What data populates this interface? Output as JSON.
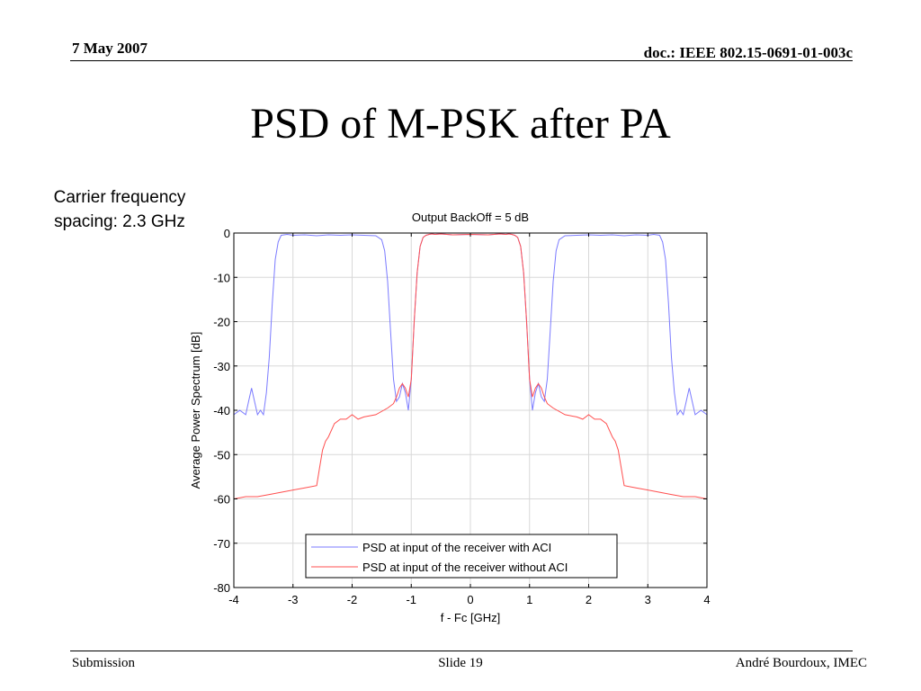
{
  "header": {
    "date": "7 May 2007",
    "doc": "doc.: IEEE 802.15-0691-01-003c"
  },
  "slide": {
    "title": "PSD of M-PSK after PA",
    "note": "Carrier frequency spacing: 2.3 GHz"
  },
  "footer": {
    "left": "Submission",
    "center": "Slide 19",
    "right": "André Bourdoux, IMEC"
  },
  "colors": {
    "with_aci": "#7b7bff",
    "without_aci": "#ff5050",
    "grid": "#d8d8d8"
  },
  "chart_data": {
    "type": "line",
    "title": "Output BackOff = 5 dB",
    "xlabel": "f - Fc [GHz]",
    "ylabel": "Average Power Spectrum [dB]",
    "xlim": [
      -4,
      4
    ],
    "ylim": [
      -80,
      0
    ],
    "xticks": [
      -4,
      -3,
      -2,
      -1,
      0,
      1,
      2,
      3,
      4
    ],
    "yticks": [
      0,
      -10,
      -20,
      -30,
      -40,
      -50,
      -60,
      -70,
      -80
    ],
    "grid": true,
    "legend_position": "bottom-center",
    "series": [
      {
        "name": "PSD at input of the receiver with ACI",
        "x": [
          -4,
          -3.9,
          -3.8,
          -3.75,
          -3.7,
          -3.65,
          -3.6,
          -3.55,
          -3.5,
          -3.45,
          -3.4,
          -3.35,
          -3.3,
          -3.25,
          -3.2,
          -3.1,
          -3.0,
          -2.8,
          -2.6,
          -2.4,
          -2.2,
          -2.0,
          -1.8,
          -1.6,
          -1.5,
          -1.45,
          -1.4,
          -1.35,
          -1.3,
          -1.25,
          -1.2,
          -1.15,
          -1.1,
          -1.05,
          -1.0,
          -0.95,
          -0.9,
          -0.85,
          -0.8,
          -0.75,
          -0.7,
          -0.65,
          -0.6,
          -0.5,
          -0.3,
          0,
          0.3,
          0.5,
          0.6,
          0.65,
          0.7,
          0.75,
          0.8,
          0.85,
          0.9,
          0.95,
          1.0,
          1.05,
          1.1,
          1.15,
          1.2,
          1.25,
          1.3,
          1.35,
          1.4,
          1.45,
          1.5,
          1.6,
          1.8,
          2.0,
          2.2,
          2.4,
          2.6,
          2.8,
          3.0,
          3.1,
          3.2,
          3.25,
          3.3,
          3.35,
          3.4,
          3.45,
          3.5,
          3.55,
          3.6,
          3.65,
          3.7,
          3.75,
          3.8,
          3.9,
          4.0
        ],
        "y": [
          -41,
          -40,
          -41,
          -38,
          -35,
          -38,
          -41,
          -40,
          -41,
          -36,
          -28,
          -16,
          -6,
          -2,
          -0.5,
          -0.3,
          -0.5,
          -0.4,
          -0.6,
          -0.4,
          -0.5,
          -0.4,
          -0.5,
          -0.6,
          -1.5,
          -4,
          -11,
          -22,
          -33,
          -38,
          -37,
          -34,
          -36,
          -40,
          -33,
          -20,
          -9,
          -3,
          -1,
          -0.5,
          -0.3,
          -0.2,
          -0.3,
          -0.2,
          -0.4,
          -0.3,
          -0.4,
          -0.2,
          -0.3,
          -0.2,
          -0.3,
          -0.5,
          -1,
          -3,
          -9,
          -20,
          -33,
          -40,
          -36,
          -34,
          -37,
          -38,
          -33,
          -22,
          -11,
          -4,
          -1.5,
          -0.6,
          -0.5,
          -0.4,
          -0.5,
          -0.4,
          -0.6,
          -0.4,
          -0.5,
          -0.3,
          -0.5,
          -2,
          -6,
          -16,
          -28,
          -36,
          -41,
          -40,
          -41,
          -38,
          -35,
          -38,
          -41,
          -40,
          -41
        ]
      },
      {
        "name": "PSD at input of the receiver without ACI",
        "x": [
          -4,
          -3.8,
          -3.6,
          -3.4,
          -3.2,
          -3.0,
          -2.8,
          -2.6,
          -2.55,
          -2.5,
          -2.45,
          -2.4,
          -2.3,
          -2.2,
          -2.1,
          -2.0,
          -1.9,
          -1.8,
          -1.6,
          -1.4,
          -1.3,
          -1.25,
          -1.2,
          -1.15,
          -1.1,
          -1.05,
          -1.0,
          -0.95,
          -0.9,
          -0.85,
          -0.8,
          -0.75,
          -0.7,
          -0.65,
          -0.6,
          -0.5,
          -0.3,
          0,
          0.3,
          0.5,
          0.6,
          0.65,
          0.7,
          0.75,
          0.8,
          0.85,
          0.9,
          0.95,
          1.0,
          1.05,
          1.1,
          1.15,
          1.2,
          1.25,
          1.3,
          1.4,
          1.6,
          1.8,
          1.9,
          2.0,
          2.1,
          2.2,
          2.3,
          2.4,
          2.45,
          2.5,
          2.55,
          2.6,
          2.8,
          3.0,
          3.2,
          3.4,
          3.6,
          3.8,
          4.0
        ],
        "y": [
          -60,
          -59.5,
          -59.5,
          -59,
          -58.5,
          -58,
          -57.5,
          -57,
          -53,
          -49,
          -47,
          -46,
          -43,
          -42,
          -42,
          -41,
          -42,
          -41.5,
          -41,
          -39.5,
          -38.5,
          -37,
          -35,
          -34,
          -35,
          -37,
          -33,
          -20,
          -9,
          -3,
          -1,
          -0.5,
          -0.3,
          -0.2,
          -0.3,
          -0.2,
          -0.4,
          -0.3,
          -0.4,
          -0.2,
          -0.3,
          -0.2,
          -0.3,
          -0.5,
          -1,
          -3,
          -9,
          -20,
          -33,
          -37,
          -35,
          -34,
          -35,
          -37,
          -38.5,
          -39.5,
          -41,
          -41.5,
          -42,
          -41,
          -42,
          -42,
          -43,
          -46,
          -47,
          -49,
          -53,
          -57,
          -57.5,
          -58,
          -58.5,
          -59,
          -59.5,
          -59.5,
          -60
        ]
      }
    ]
  }
}
